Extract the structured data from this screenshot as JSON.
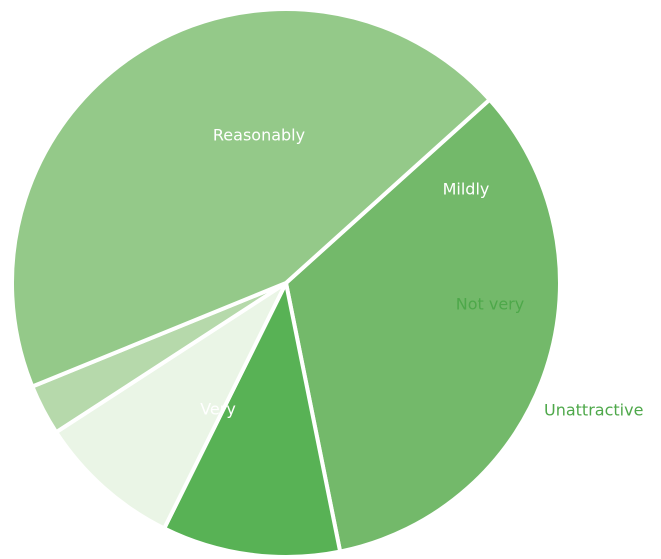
{
  "chart_data": {
    "type": "pie",
    "slices": [
      {
        "label": "Reasonably",
        "value": 33.5,
        "color": "#73b96a",
        "label_color": "#ffffff"
      },
      {
        "label": "Mildly",
        "value": 10.5,
        "color": "#58b255",
        "label_color": "#ffffff"
      },
      {
        "label": "Not very",
        "value": 8.5,
        "color": "#eaf5e6",
        "label_color": "#4ea84a"
      },
      {
        "label": "Unattractive",
        "value": 3.0,
        "color": "#b6d9ab",
        "label_color": "#4ea84a"
      },
      {
        "label": "Very",
        "value": 44.5,
        "color": "#94c989",
        "label_color": "#ffffff"
      }
    ]
  }
}
